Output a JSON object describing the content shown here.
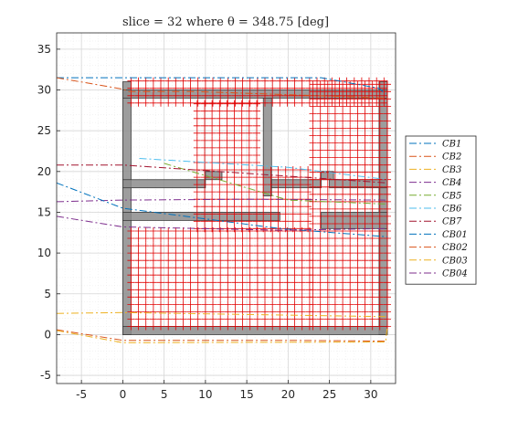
{
  "chart_data": {
    "type": "line",
    "title": "slice = 32 where θ = 348.75 [deg]",
    "xlabel": "",
    "ylabel": "",
    "xlim": [
      -8,
      33
    ],
    "ylim": [
      -6,
      37
    ],
    "x_ticks": [
      -5,
      0,
      5,
      10,
      15,
      20,
      25,
      30
    ],
    "y_ticks": [
      -5,
      0,
      5,
      10,
      15,
      20,
      25,
      30,
      35
    ],
    "grid": "major and minor",
    "legend_position": "outside-right",
    "walls": [
      [
        0,
        0,
        1,
        31
      ],
      [
        31,
        0,
        32,
        31
      ],
      [
        0,
        0,
        32,
        1
      ],
      [
        0,
        29,
        32,
        30
      ],
      [
        17,
        17,
        18,
        29
      ],
      [
        0,
        18,
        10,
        19
      ],
      [
        10,
        19,
        12,
        20
      ],
      [
        18,
        18,
        24,
        19
      ],
      [
        24,
        19,
        25.5,
        20
      ],
      [
        25,
        18,
        32,
        19
      ],
      [
        0,
        14,
        19,
        15
      ],
      [
        24,
        13,
        32,
        15
      ]
    ],
    "grid_marks": {
      "color": "#e00000",
      "regions": [
        {
          "x": [
            1,
            32
          ],
          "y": [
            28.4,
            31.8
          ],
          "step": 0.9
        },
        {
          "x": [
            9,
            17
          ],
          "y": [
            13,
            29
          ],
          "step": 0.9
        },
        {
          "x": [
            23,
            32
          ],
          "y": [
            1,
            31
          ],
          "step": 0.9
        },
        {
          "x": [
            1,
            23
          ],
          "y": [
            1,
            13
          ],
          "step": 0.9
        },
        {
          "x": [
            17,
            23
          ],
          "y": [
            13,
            21
          ],
          "step": 0.9
        }
      ]
    },
    "series": [
      {
        "name": "CB1",
        "color": "#0072BD",
        "dash": "8 3 2 3",
        "x": [
          -8,
          -5,
          0,
          24,
          31,
          31.8
        ],
        "y": [
          31.5,
          31.5,
          31.5,
          31.5,
          30.2,
          29.5
        ]
      },
      {
        "name": "CB2",
        "color": "#D95319",
        "dash": "8 3 2 3",
        "x": [
          -8,
          0,
          0.8,
          9,
          32
        ],
        "y": [
          31.5,
          30.1,
          29.8,
          29.8,
          29.0
        ]
      },
      {
        "name": "CB3",
        "color": "#EDB120",
        "dash": "8 3 2 3",
        "x": [
          -8,
          0,
          32
        ],
        "y": [
          2.6,
          2.7,
          2.2
        ]
      },
      {
        "name": "CB4",
        "color": "#7E2F8E",
        "dash": "8 3 2 3",
        "x": [
          -8,
          0,
          15,
          32
        ],
        "y": [
          16.3,
          16.5,
          16.6,
          16.5
        ]
      },
      {
        "name": "CB5",
        "color": "#77AC30",
        "dash": "8 3 2 3",
        "x": [
          5,
          20,
          32
        ],
        "y": [
          21.0,
          16.5,
          16.0
        ]
      },
      {
        "name": "CB6",
        "color": "#4DBEEE",
        "dash": "8 3 2 3",
        "x": [
          2,
          20,
          32
        ],
        "y": [
          21.6,
          20.5,
          19.0
        ]
      },
      {
        "name": "CB7",
        "color": "#A2142F",
        "dash": "8 3 2 3",
        "x": [
          -8,
          0,
          32
        ],
        "y": [
          20.8,
          20.8,
          18.6
        ]
      },
      {
        "name": "CB01",
        "color": "#0072BD",
        "dash": "8 3 2 3",
        "x": [
          -8,
          0,
          19,
          32
        ],
        "y": [
          18.6,
          15.5,
          13.0,
          12.0
        ]
      },
      {
        "name": "CB02",
        "color": "#D95319",
        "dash": "8 3 2 3",
        "x": [
          -8,
          0,
          20,
          32
        ],
        "y": [
          0.6,
          -0.7,
          -0.7,
          -0.8
        ]
      },
      {
        "name": "CB03",
        "color": "#EDB120",
        "dash": "8 3 2 3",
        "x": [
          -8,
          0,
          31.8,
          32
        ],
        "y": [
          0.5,
          -1.0,
          -0.9,
          1.0
        ]
      },
      {
        "name": "CB04",
        "color": "#7E2F8E",
        "dash": "8 3 2 3",
        "x": [
          -8,
          0,
          19,
          32
        ],
        "y": [
          14.5,
          13.2,
          12.8,
          13.0
        ]
      }
    ]
  }
}
